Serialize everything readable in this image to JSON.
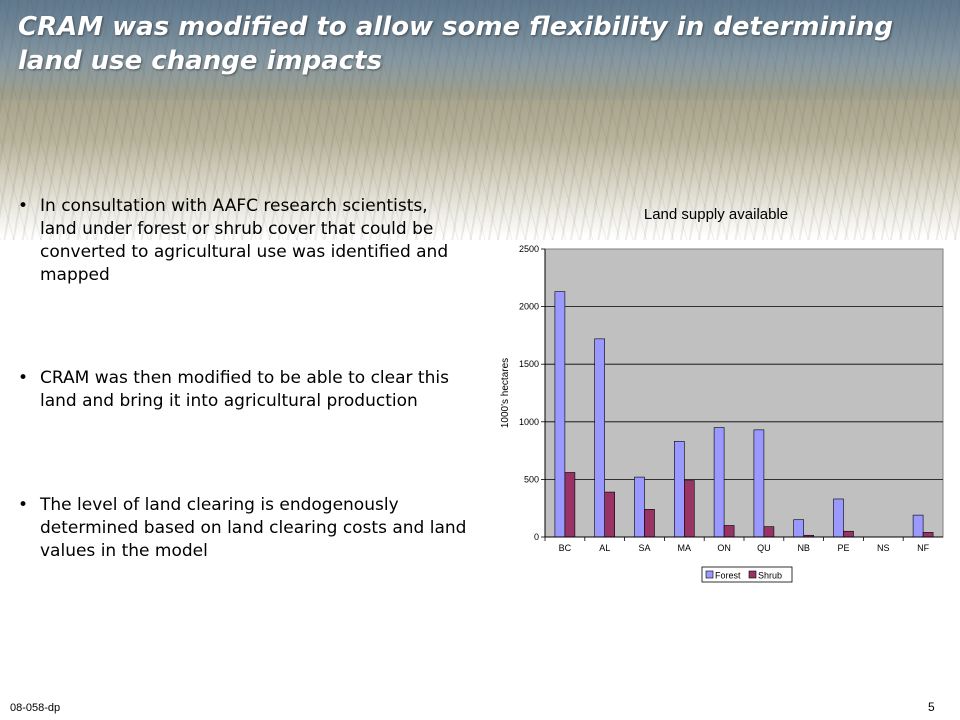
{
  "slide": {
    "title": "CRAM was modified to allow some flexibility in determining land use change impacts",
    "bullets": [
      "In consultation with AAFC research scientists, land under forest or shrub cover that could be converted to agricultural use was identified and mapped",
      "CRAM was then modified to be able to clear this land and bring it into agricultural production",
      "The level of land clearing is endogenously determined based on land clearing costs and land values in the model"
    ],
    "footer_code": "08-058-dp",
    "page_number": "5"
  },
  "chart_data": {
    "type": "bar",
    "title": "Land supply available",
    "xlabel": "",
    "ylabel": "1000's hectares",
    "ylim": [
      0,
      2500
    ],
    "yticks": [
      0,
      500,
      1000,
      1500,
      2000,
      2500
    ],
    "grid": true,
    "legend_position": "bottom",
    "categories": [
      "BC",
      "AL",
      "SA",
      "MA",
      "ON",
      "QU",
      "NB",
      "PE",
      "NS",
      "NF"
    ],
    "series": [
      {
        "name": "Forest",
        "color": "#9999ff",
        "values": [
          2130,
          1720,
          520,
          830,
          950,
          930,
          150,
          330,
          0,
          190
        ]
      },
      {
        "name": "Shrub",
        "color": "#993366",
        "values": [
          560,
          390,
          240,
          490,
          100,
          90,
          15,
          50,
          0,
          40
        ]
      }
    ],
    "plot_background": "#c0c0c0"
  }
}
